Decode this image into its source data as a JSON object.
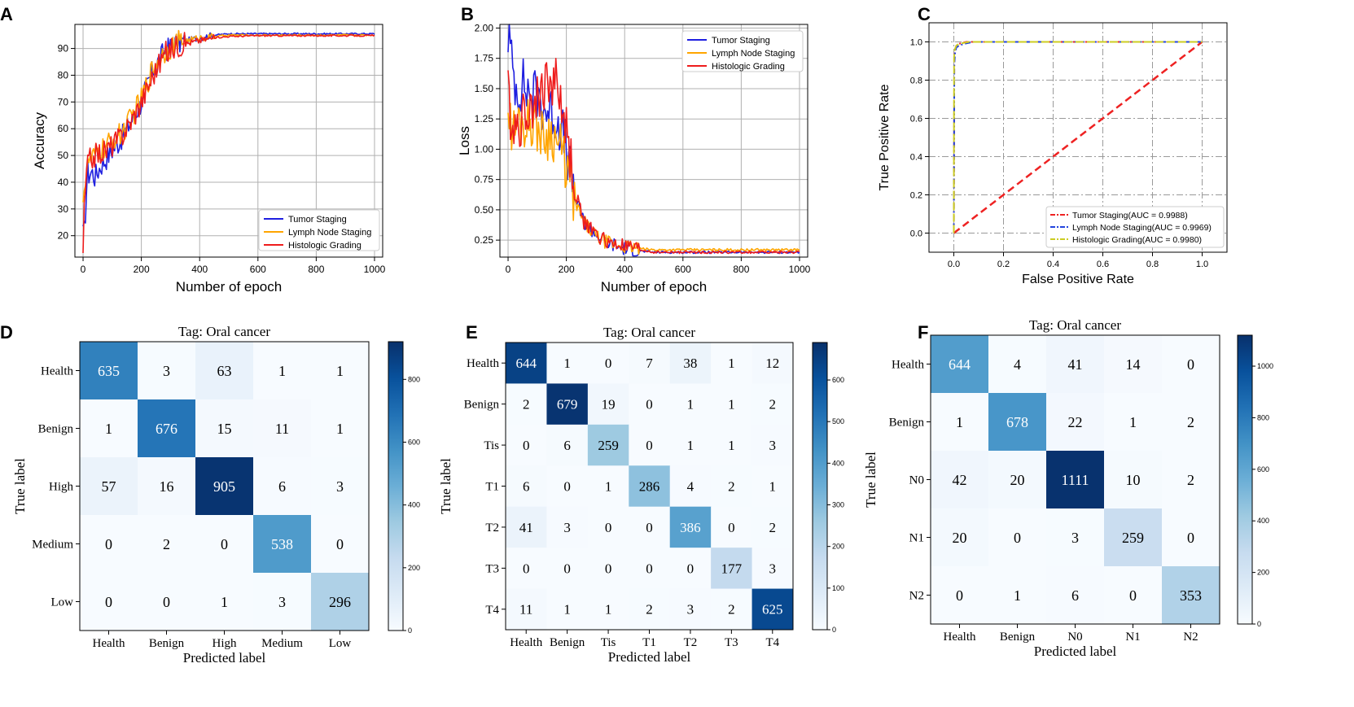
{
  "colors": {
    "tumor": "#1f1fe0",
    "lymph": "#ffa500",
    "histo": "#ee1c1c",
    "grid": "#b0b0b0",
    "roc_diag": "#ee2222",
    "roc_lymph": "#2244dd",
    "roc_histo": "#cccc22",
    "cm_low": "#f7fbff",
    "cm_high": "#08306b"
  },
  "chart_data": [
    {
      "panel": "A",
      "type": "line",
      "xlabel": "Number of epoch",
      "ylabel": "Accuracy",
      "xlim": [
        -28,
        1028
      ],
      "ylim": [
        12,
        99
      ],
      "xticks": [
        0,
        200,
        400,
        600,
        800,
        1000
      ],
      "yticks": [
        20,
        30,
        40,
        50,
        60,
        70,
        80,
        90
      ],
      "grid": true,
      "legend_loc": "lower-right",
      "series": [
        {
          "name": "Tumor Staging",
          "color_key": "tumor",
          "x": [
            0,
            5,
            10,
            15,
            20,
            30,
            40,
            50,
            60,
            80,
            100,
            130,
            160,
            200,
            240,
            280,
            320,
            360,
            400,
            450,
            500,
            600,
            700,
            800,
            900,
            1000
          ],
          "y": [
            20,
            22,
            33,
            44,
            43,
            44,
            42,
            44,
            46,
            49,
            52,
            56,
            62,
            70,
            82,
            89,
            92,
            93,
            94,
            95,
            95.5,
            95.5,
            95.5,
            95.5,
            95.5,
            95.5
          ]
        },
        {
          "name": "Lymph Node Staging",
          "color_key": "lymph",
          "x": [
            0,
            5,
            10,
            20,
            30,
            40,
            60,
            80,
            100,
            130,
            160,
            200,
            240,
            280,
            320,
            360,
            400,
            450,
            500,
            600,
            700,
            800,
            900,
            1000
          ],
          "y": [
            36,
            38,
            42,
            48,
            48,
            50,
            52,
            53,
            56,
            58,
            63,
            71,
            83,
            89,
            92,
            93,
            94,
            94.5,
            95,
            95,
            95,
            95,
            95,
            95
          ]
        },
        {
          "name": "Histologic Grading",
          "color_key": "histo",
          "x": [
            0,
            3,
            6,
            10,
            15,
            20,
            30,
            40,
            60,
            80,
            100,
            130,
            160,
            200,
            240,
            280,
            320,
            360,
            400,
            450,
            500,
            600,
            700,
            800,
            900,
            1000
          ],
          "y": [
            15,
            26,
            33,
            40,
            47,
            48,
            49,
            50,
            51,
            52,
            54,
            57,
            62,
            70,
            80,
            88,
            91,
            92,
            93,
            94,
            94.5,
            94.8,
            94.8,
            94.8,
            94.8,
            94.8
          ]
        }
      ]
    },
    {
      "panel": "B",
      "type": "line",
      "xlabel": "Number of epoch",
      "ylabel": "Loss",
      "xlim": [
        -28,
        1028
      ],
      "ylim": [
        0.11,
        2.03
      ],
      "xticks": [
        0,
        200,
        400,
        600,
        800,
        1000
      ],
      "yticks": [
        0.25,
        0.5,
        0.75,
        1.0,
        1.25,
        1.5,
        1.75,
        2.0
      ],
      "ytick_labels": [
        "0.25",
        "0.50",
        "0.75",
        "1.00",
        "1.25",
        "1.50",
        "1.75",
        "2.00"
      ],
      "grid": true,
      "legend_loc": "upper-right",
      "series": [
        {
          "name": "Tumor Staging",
          "color_key": "tumor",
          "x": [
            0,
            5,
            10,
            20,
            30,
            40,
            50,
            60,
            80,
            100,
            120,
            150,
            180,
            200,
            230,
            260,
            300,
            350,
            400,
            450,
            500,
            600,
            700,
            800,
            900,
            1000
          ],
          "y": [
            1.95,
            1.9,
            1.75,
            1.6,
            1.5,
            1.5,
            1.55,
            1.5,
            1.45,
            1.45,
            1.35,
            1.3,
            1.2,
            1.0,
            0.6,
            0.4,
            0.3,
            0.22,
            0.18,
            0.16,
            0.15,
            0.15,
            0.15,
            0.15,
            0.15,
            0.15
          ]
        },
        {
          "name": "Lymph Node Staging",
          "color_key": "lymph",
          "x": [
            0,
            5,
            10,
            20,
            30,
            40,
            60,
            80,
            100,
            120,
            150,
            180,
            200,
            230,
            260,
            300,
            350,
            400,
            450,
            500,
            600,
            700,
            800,
            900,
            1000
          ],
          "y": [
            1.35,
            1.25,
            1.2,
            1.15,
            1.2,
            1.25,
            1.2,
            1.25,
            1.2,
            1.1,
            1.15,
            1.0,
            0.85,
            0.55,
            0.4,
            0.28,
            0.22,
            0.2,
            0.18,
            0.17,
            0.17,
            0.17,
            0.17,
            0.17,
            0.17
          ]
        },
        {
          "name": "Histologic Grading",
          "color_key": "histo",
          "x": [
            0,
            3,
            6,
            10,
            20,
            30,
            40,
            60,
            80,
            100,
            120,
            140,
            160,
            180,
            200,
            230,
            260,
            300,
            350,
            400,
            450,
            500,
            600,
            700,
            800,
            900,
            1000
          ],
          "y": [
            1.6,
            1.45,
            1.3,
            1.25,
            1.2,
            1.2,
            1.2,
            1.3,
            1.4,
            1.4,
            1.5,
            1.55,
            1.6,
            1.4,
            1.15,
            0.65,
            0.4,
            0.3,
            0.22,
            0.2,
            0.17,
            0.15,
            0.15,
            0.15,
            0.15,
            0.15,
            0.15
          ]
        }
      ]
    },
    {
      "panel": "C",
      "type": "line",
      "xlabel": "False Positive Rate",
      "ylabel": "True Positive Rate",
      "xlim": [
        -0.1,
        1.1
      ],
      "ylim": [
        -0.1,
        1.1
      ],
      "xticks": [
        0.0,
        0.2,
        0.4,
        0.6,
        0.8,
        1.0
      ],
      "yticks": [
        0.0,
        0.2,
        0.4,
        0.6,
        0.8,
        1.0
      ],
      "tick_labels": [
        "0.0",
        "0.2",
        "0.4",
        "0.6",
        "0.8",
        "1.0"
      ],
      "grid": true,
      "legend_loc": "lower-right",
      "series": [
        {
          "name": "Tumor Staging(AUC = 0.9988)",
          "color_key": "roc_diag",
          "x": [
            0,
            0.002,
            0.005,
            0.01,
            0.02,
            0.05,
            1.0
          ],
          "y": [
            0,
            0.9,
            0.96,
            0.98,
            0.99,
            1.0,
            1.0
          ]
        },
        {
          "name": "Lymph Node Staging(AUC = 0.9969)",
          "color_key": "roc_lymph",
          "x": [
            0,
            0.002,
            0.005,
            0.01,
            0.02,
            0.04,
            0.08,
            1.0
          ],
          "y": [
            0,
            0.88,
            0.94,
            0.97,
            0.98,
            0.99,
            1.0,
            1.0
          ]
        },
        {
          "name": "Histologic Grading(AUC = 0.9980)",
          "color_key": "roc_histo",
          "x": [
            0,
            0.001,
            0.004,
            0.01,
            0.02,
            0.06,
            1.0
          ],
          "y": [
            0,
            0.92,
            0.96,
            0.98,
            0.99,
            1.0,
            1.0
          ]
        }
      ],
      "diagonal": {
        "x": [
          0,
          1
        ],
        "y": [
          0,
          1
        ]
      }
    },
    {
      "panel": "D",
      "type": "heatmap",
      "title": "Tag: Oral cancer",
      "xlabel": "Predicted label",
      "ylabel": "True label",
      "labels": [
        "Health",
        "Benign",
        "High",
        "Medium",
        "Low"
      ],
      "matrix": [
        [
          635,
          3,
          63,
          1,
          1
        ],
        [
          1,
          676,
          15,
          11,
          1
        ],
        [
          57,
          16,
          905,
          6,
          3
        ],
        [
          0,
          2,
          0,
          538,
          0
        ],
        [
          0,
          0,
          1,
          3,
          296
        ]
      ],
      "vmax": 920,
      "colorbar_ticks": [
        0,
        200,
        400,
        600,
        800
      ]
    },
    {
      "panel": "E",
      "type": "heatmap",
      "title": "Tag: Oral cancer",
      "xlabel": "Predicted label",
      "ylabel": "True label",
      "labels": [
        "Health",
        "Benign",
        "Tis",
        "T1",
        "T2",
        "T3",
        "T4"
      ],
      "matrix": [
        [
          644,
          1,
          0,
          7,
          38,
          1,
          12
        ],
        [
          2,
          679,
          19,
          0,
          1,
          1,
          2
        ],
        [
          0,
          6,
          259,
          0,
          1,
          1,
          3
        ],
        [
          6,
          0,
          1,
          286,
          4,
          2,
          1
        ],
        [
          41,
          3,
          0,
          0,
          386,
          0,
          2
        ],
        [
          0,
          0,
          0,
          0,
          0,
          177,
          3
        ],
        [
          11,
          1,
          1,
          2,
          3,
          2,
          625
        ]
      ],
      "vmax": 690,
      "colorbar_ticks": [
        0,
        100,
        200,
        300,
        400,
        500,
        600
      ]
    },
    {
      "panel": "F",
      "type": "heatmap",
      "title": "Tag: Oral cancer",
      "xlabel": "Predicted label",
      "ylabel": "True label",
      "labels": [
        "Health",
        "Benign",
        "N0",
        "N1",
        "N2"
      ],
      "matrix": [
        [
          644,
          4,
          41,
          14,
          0
        ],
        [
          1,
          678,
          22,
          1,
          2
        ],
        [
          42,
          20,
          1111,
          10,
          2
        ],
        [
          20,
          0,
          3,
          259,
          0
        ],
        [
          0,
          1,
          6,
          0,
          353
        ]
      ],
      "vmax": 1120,
      "colorbar_ticks": [
        0,
        200,
        400,
        600,
        800,
        1000
      ]
    }
  ]
}
